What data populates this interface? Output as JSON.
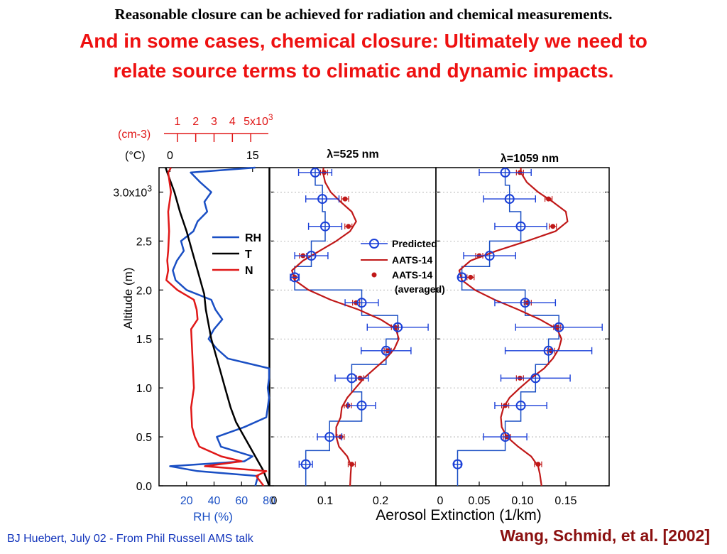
{
  "slide": {
    "title": "Reasonable closure can be achieved for radiation and chemical measurements.",
    "subtitle_line1": "And in some cases, chemical closure: Ultimately we need to",
    "subtitle_line2": "relate source terms to climatic and dynamic impacts.",
    "footer_left": "BJ Huebert, July 02 - From Phil Russell AMS talk",
    "footer_right": "Wang, Schmid, et al. [2002]"
  },
  "colors": {
    "rh": "#1a4fc4",
    "t": "#000000",
    "n": "#e01818",
    "predicted": "#1a3fd8",
    "aats": "#c01818"
  },
  "chart_data": [
    {
      "type": "line",
      "title": "",
      "ylabel": "Altitude (m)",
      "ylim": [
        0,
        3250
      ],
      "y_tick_labels": [
        "0.0",
        "0.5",
        "1.0",
        "1.5",
        "2.0",
        "2.5",
        "3.0x10^3"
      ],
      "x_axes": [
        {
          "label": "RH (%)",
          "position": "bottom",
          "ticks": [
            "20",
            "40",
            "60",
            "80"
          ],
          "range": [
            0,
            80
          ]
        },
        {
          "label": "(°C)",
          "position": "top",
          "ticks": [
            "0",
            "15"
          ],
          "range": [
            -2,
            18
          ]
        },
        {
          "label": "(cm-3)",
          "position": "top",
          "ticks": [
            "1",
            "2",
            "3",
            "4",
            "5x10^3"
          ],
          "range": [
            0,
            6
          ]
        }
      ],
      "legend": [
        "RH",
        "T",
        "N"
      ],
      "series": [
        {
          "name": "RH",
          "y": [
            0,
            100,
            150,
            200,
            250,
            300,
            400,
            500,
            600,
            700,
            800,
            900,
            1000,
            1100,
            1200,
            1300,
            1400,
            1500,
            1600,
            1700,
            1800,
            1900,
            2000,
            2100,
            2200,
            2300,
            2400,
            2500,
            2600,
            2700,
            2800,
            2900,
            3000,
            3100,
            3200,
            3250
          ],
          "x": [
            70,
            72,
            28,
            8,
            62,
            68,
            45,
            42,
            62,
            78,
            79,
            80,
            79,
            80,
            80,
            50,
            42,
            36,
            40,
            46,
            41,
            38,
            20,
            12,
            10,
            13,
            18,
            16,
            25,
            28,
            35,
            33,
            38,
            30,
            23,
            70
          ]
        },
        {
          "name": "T",
          "y": [
            0,
            150,
            250,
            400,
            500,
            650,
            800,
            1000,
            1200,
            1500,
            1800,
            1960,
            2000,
            2200,
            2400,
            2600,
            2800,
            3000,
            3200,
            3250
          ],
          "x": [
            18,
            17,
            16,
            14.5,
            13.5,
            12,
            11,
            10,
            9,
            7.5,
            6.5,
            6.2,
            6,
            5,
            4,
            3,
            1.8,
            0.8,
            -0.5,
            -0.8
          ]
        },
        {
          "name": "N",
          "y": [
            0,
            100,
            150,
            200,
            250,
            300,
            400,
            500,
            600,
            800,
            1000,
            1200,
            1400,
            1600,
            1700,
            1800,
            1900,
            2000,
            2100,
            2200,
            2300,
            2400,
            2600,
            2800,
            3000,
            3200,
            3250
          ],
          "x": [
            5.7,
            5.3,
            5.85,
            2.5,
            4.5,
            3.4,
            2.2,
            1.95,
            1.8,
            1.75,
            1.9,
            1.85,
            1.8,
            1.75,
            2.1,
            2.05,
            1.9,
            1.0,
            0.4,
            0.5,
            0.45,
            0.5,
            0.55,
            0.5,
            0.65,
            0.5,
            0.65
          ]
        }
      ]
    },
    {
      "type": "scatter",
      "title": "λ=525 nm",
      "xlim": [
        0,
        0.3
      ],
      "x_ticks": [
        "0",
        "0.1",
        "0.2"
      ],
      "ylim": [
        0,
        3250
      ],
      "legend": [
        "Predicted",
        "AATS-14",
        "AATS-14 (averaged)"
      ],
      "series": [
        {
          "name": "Predicted",
          "y": [
            220,
            500,
            820,
            1100,
            1380,
            1620,
            1870,
            2130,
            2350,
            2650,
            2930,
            3200
          ],
          "x": [
            0.065,
            0.108,
            0.166,
            0.148,
            0.21,
            0.231,
            0.166,
            0.045,
            0.075,
            0.1,
            0.095,
            0.082
          ],
          "xerr": [
            0.012,
            0.022,
            0.025,
            0.03,
            0.045,
            0.055,
            0.03,
            0.008,
            0.03,
            0.03,
            0.03,
            0.03
          ]
        },
        {
          "name": "AATS-14 (averaged)",
          "y": [
            220,
            500,
            820,
            1100,
            1380,
            1620,
            1870,
            2130,
            2350,
            2650,
            2930,
            3200
          ],
          "x": [
            0.148,
            0.128,
            0.141,
            0.163,
            0.213,
            0.226,
            0.156,
            0.045,
            0.06,
            0.142,
            0.136,
            0.098
          ]
        },
        {
          "name": "AATS-14",
          "y": [
            0,
            120,
            200,
            300,
            400,
            500,
            600,
            700,
            800,
            900,
            1000,
            1100,
            1200,
            1300,
            1400,
            1500,
            1600,
            1700,
            1800,
            1900,
            2000,
            2100,
            2200,
            2300,
            2400,
            2500,
            2600,
            2700,
            2800,
            2900,
            3000,
            3100,
            3200,
            3250
          ],
          "x": [
            0.145,
            0.146,
            0.147,
            0.14,
            0.125,
            0.12,
            0.12,
            0.128,
            0.13,
            0.14,
            0.155,
            0.17,
            0.19,
            0.21,
            0.225,
            0.233,
            0.228,
            0.2,
            0.16,
            0.11,
            0.07,
            0.045,
            0.04,
            0.06,
            0.09,
            0.12,
            0.145,
            0.156,
            0.148,
            0.128,
            0.11,
            0.1,
            0.096,
            0.097
          ]
        }
      ]
    },
    {
      "type": "scatter",
      "title": "λ=1059 nm",
      "xlabel": "Aerosol Extinction (1/km)",
      "xlim": [
        0,
        0.2
      ],
      "x_ticks": [
        "0",
        "0.05",
        "0.10",
        "0.15"
      ],
      "ylim": [
        0,
        3250
      ],
      "series": [
        {
          "name": "Predicted",
          "y": [
            220,
            500,
            820,
            1100,
            1380,
            1620,
            1870,
            2130,
            2350,
            2650,
            2930,
            3200
          ],
          "x": [
            0.025,
            0.08,
            0.098,
            0.115,
            0.13,
            0.142,
            0.103,
            0.03,
            0.062,
            0.098,
            0.085,
            0.08
          ],
          "xerr": [
            0.004,
            0.025,
            0.03,
            0.04,
            0.05,
            0.05,
            0.035,
            0.004,
            0.03,
            0.03,
            0.03,
            0.03
          ]
        },
        {
          "name": "AATS-14 (averaged)",
          "y": [
            220,
            500,
            820,
            1100,
            1380,
            1620,
            1870,
            2130,
            2350,
            2650,
            2930,
            3200
          ],
          "x": [
            0.118,
            0.082,
            0.08,
            0.097,
            0.133,
            0.14,
            0.106,
            0.04,
            0.05,
            0.135,
            0.13,
            0.097
          ]
        },
        {
          "name": "AATS-14",
          "y": [
            0,
            120,
            200,
            300,
            400,
            500,
            600,
            700,
            800,
            900,
            1000,
            1100,
            1200,
            1300,
            1400,
            1500,
            1600,
            1700,
            1800,
            1900,
            2000,
            2100,
            2200,
            2300,
            2400,
            2500,
            2600,
            2700,
            2800,
            2900,
            3000,
            3100,
            3200,
            3250
          ],
          "x": [
            0.122,
            0.12,
            0.118,
            0.11,
            0.095,
            0.082,
            0.076,
            0.075,
            0.078,
            0.085,
            0.097,
            0.11,
            0.125,
            0.135,
            0.142,
            0.145,
            0.14,
            0.12,
            0.095,
            0.068,
            0.045,
            0.03,
            0.027,
            0.04,
            0.07,
            0.105,
            0.138,
            0.152,
            0.15,
            0.135,
            0.118,
            0.105,
            0.098,
            0.098
          ]
        }
      ]
    }
  ],
  "labels": {
    "rh_top_title": "(cm-3)",
    "temp_title": "(°C)",
    "legend1_rh": "RH",
    "legend1_t": "T",
    "legend1_n": "N",
    "legend2_predicted": "Predicted",
    "legend2_aats": "AATS-14",
    "legend2_aats_avg_1": "AATS-14",
    "legend2_aats_avg_2": "(averaged)"
  }
}
